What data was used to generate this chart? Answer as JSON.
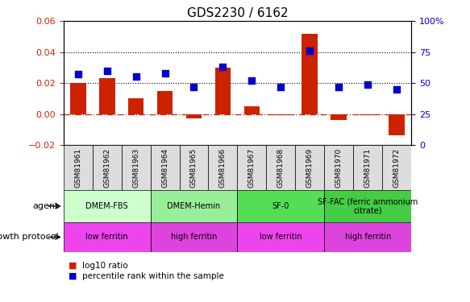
{
  "title": "GDS2230 / 6162",
  "samples": [
    "GSM81961",
    "GSM81962",
    "GSM81963",
    "GSM81964",
    "GSM81965",
    "GSM81966",
    "GSM81967",
    "GSM81968",
    "GSM81969",
    "GSM81970",
    "GSM81971",
    "GSM81972"
  ],
  "log10_ratio": [
    0.02,
    0.023,
    0.01,
    0.015,
    -0.003,
    0.03,
    0.005,
    -0.001,
    0.052,
    -0.004,
    -0.001,
    -0.014
  ],
  "percentile_rank": [
    57,
    60,
    55,
    58,
    47,
    63,
    52,
    47,
    76,
    47,
    49,
    45
  ],
  "bar_color": "#cc2200",
  "square_color": "#0000cc",
  "dashed_line_color": "#cc2200",
  "ylim_left": [
    -0.02,
    0.06
  ],
  "ylim_right": [
    0,
    100
  ],
  "yticks_left": [
    -0.02,
    0.0,
    0.02,
    0.04,
    0.06
  ],
  "yticks_right": [
    0,
    25,
    50,
    75,
    100
  ],
  "hlines": [
    0.02,
    0.04
  ],
  "agent_groups": [
    {
      "label": "DMEM-FBS",
      "start": 0,
      "end": 3,
      "color": "#ccffcc"
    },
    {
      "label": "DMEM-Hemin",
      "start": 3,
      "end": 6,
      "color": "#99ee99"
    },
    {
      "label": "SF-0",
      "start": 6,
      "end": 9,
      "color": "#55dd55"
    },
    {
      "label": "SF-FAC (ferric ammonium\ncitrate)",
      "start": 9,
      "end": 12,
      "color": "#44cc44"
    }
  ],
  "growth_groups": [
    {
      "label": "low ferritin",
      "start": 0,
      "end": 3,
      "color": "#ee44ee"
    },
    {
      "label": "high ferritin",
      "start": 3,
      "end": 6,
      "color": "#dd44dd"
    },
    {
      "label": "low ferritin",
      "start": 6,
      "end": 9,
      "color": "#ee44ee"
    },
    {
      "label": "high ferritin",
      "start": 9,
      "end": 12,
      "color": "#dd44dd"
    }
  ],
  "agent_label": "agent",
  "growth_label": "growth protocol",
  "legend_bar": "log10 ratio",
  "legend_square": "percentile rank within the sample",
  "bar_width": 0.55,
  "square_size": 30,
  "tick_label_fontsize": 6.5,
  "title_fontsize": 11,
  "sample_box_color": "#dddddd"
}
